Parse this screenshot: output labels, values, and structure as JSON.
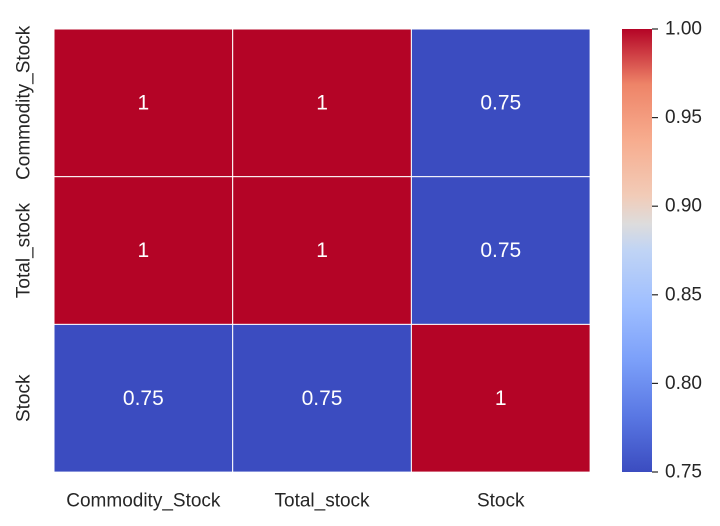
{
  "chart_data": {
    "type": "heatmap",
    "title": "",
    "xlabel": "",
    "ylabel": "",
    "x_categories": [
      "Commodity_Stock",
      "Total_stock",
      "Stock"
    ],
    "y_categories": [
      "Commodity_Stock",
      "Total_stock",
      "Stock"
    ],
    "values": [
      [
        1,
        1,
        0.75
      ],
      [
        1,
        1,
        0.75
      ],
      [
        0.75,
        0.75,
        1
      ]
    ],
    "cell_labels": [
      [
        "1",
        "1",
        "0.75"
      ],
      [
        "1",
        "1",
        "0.75"
      ],
      [
        "0.75",
        "0.75",
        "1"
      ]
    ],
    "colormap": "coolwarm",
    "colorbar": {
      "range": [
        0.75,
        1.0
      ],
      "ticks": [
        0.75,
        0.8,
        0.85,
        0.9,
        0.95,
        1.0
      ],
      "tick_labels": [
        "0.75",
        "0.80",
        "0.85",
        "0.90",
        "0.95",
        "1.00"
      ]
    },
    "colors": {
      "high": "#b40426",
      "low": "#3b4cc0",
      "cell_border": "#ffffff",
      "text": "#ffffff",
      "tick_text": "#262626"
    }
  }
}
